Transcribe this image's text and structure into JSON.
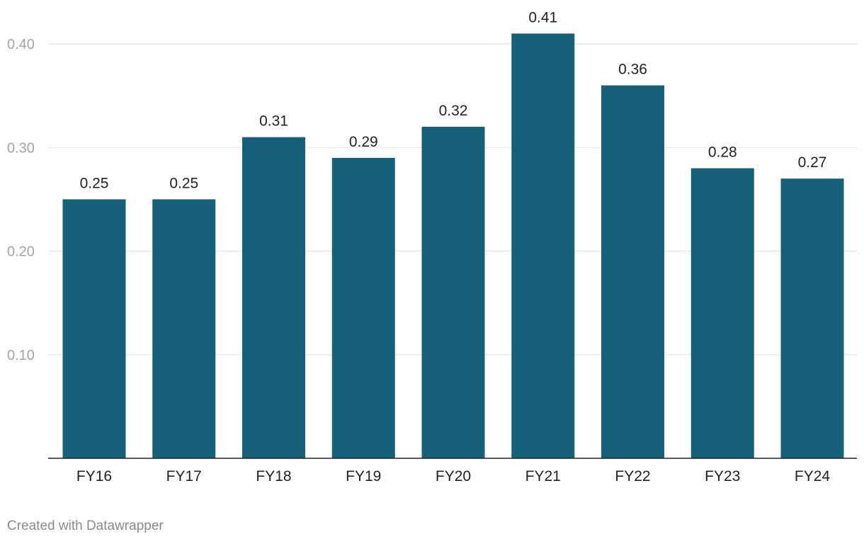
{
  "colors": {
    "bar": "#17607a",
    "grid": "#e2e2e2",
    "axis": "#222222",
    "tick_text": "#a3a3a3"
  },
  "credit": "Created with Datawrapper",
  "chart_data": {
    "type": "bar",
    "categories": [
      "FY16",
      "FY17",
      "FY18",
      "FY19",
      "FY20",
      "FY21",
      "FY22",
      "FY23",
      "FY24"
    ],
    "values": [
      0.25,
      0.25,
      0.31,
      0.29,
      0.32,
      0.41,
      0.36,
      0.28,
      0.27
    ],
    "value_labels": [
      "0.25",
      "0.25",
      "0.31",
      "0.29",
      "0.32",
      "0.41",
      "0.36",
      "0.28",
      "0.27"
    ],
    "y_ticks": [
      {
        "value": 0.1,
        "label": "0.10"
      },
      {
        "value": 0.2,
        "label": "0.20"
      },
      {
        "value": 0.3,
        "label": "0.30"
      },
      {
        "value": 0.4,
        "label": "0.40"
      }
    ],
    "ylim": [
      0,
      0.4
    ],
    "grid": true,
    "legend": "none"
  }
}
